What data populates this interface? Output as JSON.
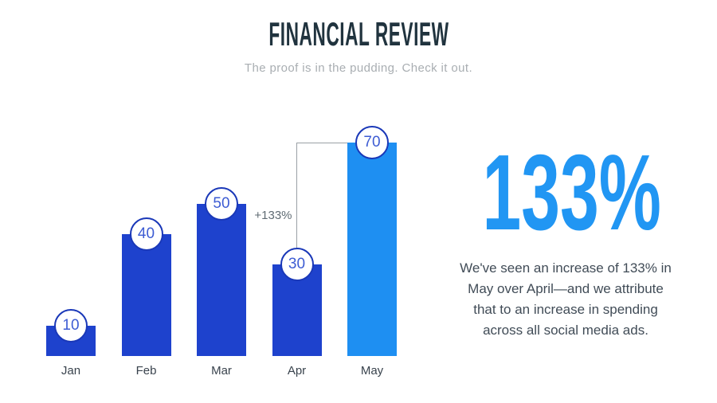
{
  "header": {
    "title": "FINANCIAL REVIEW",
    "subtitle": "The proof is in the pudding. Check it out."
  },
  "chart_data": {
    "type": "bar",
    "title": "FINANCIAL REVIEW",
    "xlabel": "",
    "ylabel": "",
    "categories": [
      "Jan",
      "Feb",
      "Mar",
      "Apr",
      "May"
    ],
    "values": [
      10,
      40,
      50,
      30,
      70
    ],
    "ylim": [
      0,
      78
    ],
    "grid": false,
    "legend": "none",
    "highlight_index": 4,
    "annotation": {
      "label": "+133%",
      "from_index": 3,
      "to_index": 4
    },
    "colors": {
      "bar": "#1E42CD",
      "highlight_bar": "#1E8FF2",
      "bubble_border": "#1A38B8",
      "bubble_text": "#3D5CD3",
      "annotation_text": "#5F6B73",
      "line": "#9AA0A5"
    }
  },
  "callout": {
    "stat": "133%",
    "stat_color": "#2196F3",
    "description": "We've seen an increase of 133% in\nMay over April—and we attribute\nthat to an increase in spending\nacross all social media ads."
  }
}
